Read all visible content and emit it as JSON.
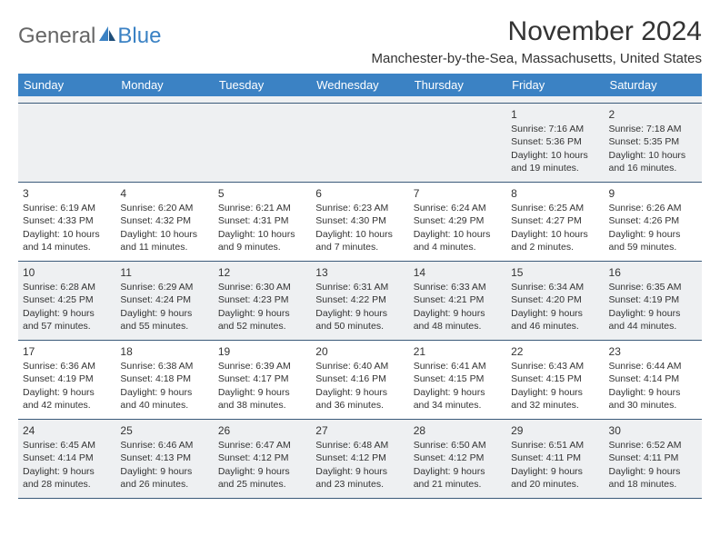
{
  "brand": {
    "part1": "General",
    "part2": "Blue"
  },
  "title": "November 2024",
  "location": "Manchester-by-the-Sea, Massachusetts, United States",
  "colors": {
    "header_bg": "#3b82c4",
    "header_text": "#ffffff",
    "border": "#3b5a7a",
    "shade": "#eef0f2",
    "text": "#333333",
    "logo_gray": "#666666",
    "logo_blue": "#3b82c4"
  },
  "day_names": [
    "Sunday",
    "Monday",
    "Tuesday",
    "Wednesday",
    "Thursday",
    "Friday",
    "Saturday"
  ],
  "weeks": [
    [
      {
        "empty": true
      },
      {
        "empty": true
      },
      {
        "empty": true
      },
      {
        "empty": true
      },
      {
        "empty": true
      },
      {
        "day": "1",
        "sunrise": "Sunrise: 7:16 AM",
        "sunset": "Sunset: 5:36 PM",
        "daylight": "Daylight: 10 hours and 19 minutes."
      },
      {
        "day": "2",
        "sunrise": "Sunrise: 7:18 AM",
        "sunset": "Sunset: 5:35 PM",
        "daylight": "Daylight: 10 hours and 16 minutes."
      }
    ],
    [
      {
        "day": "3",
        "sunrise": "Sunrise: 6:19 AM",
        "sunset": "Sunset: 4:33 PM",
        "daylight": "Daylight: 10 hours and 14 minutes."
      },
      {
        "day": "4",
        "sunrise": "Sunrise: 6:20 AM",
        "sunset": "Sunset: 4:32 PM",
        "daylight": "Daylight: 10 hours and 11 minutes."
      },
      {
        "day": "5",
        "sunrise": "Sunrise: 6:21 AM",
        "sunset": "Sunset: 4:31 PM",
        "daylight": "Daylight: 10 hours and 9 minutes."
      },
      {
        "day": "6",
        "sunrise": "Sunrise: 6:23 AM",
        "sunset": "Sunset: 4:30 PM",
        "daylight": "Daylight: 10 hours and 7 minutes."
      },
      {
        "day": "7",
        "sunrise": "Sunrise: 6:24 AM",
        "sunset": "Sunset: 4:29 PM",
        "daylight": "Daylight: 10 hours and 4 minutes."
      },
      {
        "day": "8",
        "sunrise": "Sunrise: 6:25 AM",
        "sunset": "Sunset: 4:27 PM",
        "daylight": "Daylight: 10 hours and 2 minutes."
      },
      {
        "day": "9",
        "sunrise": "Sunrise: 6:26 AM",
        "sunset": "Sunset: 4:26 PM",
        "daylight": "Daylight: 9 hours and 59 minutes."
      }
    ],
    [
      {
        "day": "10",
        "sunrise": "Sunrise: 6:28 AM",
        "sunset": "Sunset: 4:25 PM",
        "daylight": "Daylight: 9 hours and 57 minutes."
      },
      {
        "day": "11",
        "sunrise": "Sunrise: 6:29 AM",
        "sunset": "Sunset: 4:24 PM",
        "daylight": "Daylight: 9 hours and 55 minutes."
      },
      {
        "day": "12",
        "sunrise": "Sunrise: 6:30 AM",
        "sunset": "Sunset: 4:23 PM",
        "daylight": "Daylight: 9 hours and 52 minutes."
      },
      {
        "day": "13",
        "sunrise": "Sunrise: 6:31 AM",
        "sunset": "Sunset: 4:22 PM",
        "daylight": "Daylight: 9 hours and 50 minutes."
      },
      {
        "day": "14",
        "sunrise": "Sunrise: 6:33 AM",
        "sunset": "Sunset: 4:21 PM",
        "daylight": "Daylight: 9 hours and 48 minutes."
      },
      {
        "day": "15",
        "sunrise": "Sunrise: 6:34 AM",
        "sunset": "Sunset: 4:20 PM",
        "daylight": "Daylight: 9 hours and 46 minutes."
      },
      {
        "day": "16",
        "sunrise": "Sunrise: 6:35 AM",
        "sunset": "Sunset: 4:19 PM",
        "daylight": "Daylight: 9 hours and 44 minutes."
      }
    ],
    [
      {
        "day": "17",
        "sunrise": "Sunrise: 6:36 AM",
        "sunset": "Sunset: 4:19 PM",
        "daylight": "Daylight: 9 hours and 42 minutes."
      },
      {
        "day": "18",
        "sunrise": "Sunrise: 6:38 AM",
        "sunset": "Sunset: 4:18 PM",
        "daylight": "Daylight: 9 hours and 40 minutes."
      },
      {
        "day": "19",
        "sunrise": "Sunrise: 6:39 AM",
        "sunset": "Sunset: 4:17 PM",
        "daylight": "Daylight: 9 hours and 38 minutes."
      },
      {
        "day": "20",
        "sunrise": "Sunrise: 6:40 AM",
        "sunset": "Sunset: 4:16 PM",
        "daylight": "Daylight: 9 hours and 36 minutes."
      },
      {
        "day": "21",
        "sunrise": "Sunrise: 6:41 AM",
        "sunset": "Sunset: 4:15 PM",
        "daylight": "Daylight: 9 hours and 34 minutes."
      },
      {
        "day": "22",
        "sunrise": "Sunrise: 6:43 AM",
        "sunset": "Sunset: 4:15 PM",
        "daylight": "Daylight: 9 hours and 32 minutes."
      },
      {
        "day": "23",
        "sunrise": "Sunrise: 6:44 AM",
        "sunset": "Sunset: 4:14 PM",
        "daylight": "Daylight: 9 hours and 30 minutes."
      }
    ],
    [
      {
        "day": "24",
        "sunrise": "Sunrise: 6:45 AM",
        "sunset": "Sunset: 4:14 PM",
        "daylight": "Daylight: 9 hours and 28 minutes."
      },
      {
        "day": "25",
        "sunrise": "Sunrise: 6:46 AM",
        "sunset": "Sunset: 4:13 PM",
        "daylight": "Daylight: 9 hours and 26 minutes."
      },
      {
        "day": "26",
        "sunrise": "Sunrise: 6:47 AM",
        "sunset": "Sunset: 4:12 PM",
        "daylight": "Daylight: 9 hours and 25 minutes."
      },
      {
        "day": "27",
        "sunrise": "Sunrise: 6:48 AM",
        "sunset": "Sunset: 4:12 PM",
        "daylight": "Daylight: 9 hours and 23 minutes."
      },
      {
        "day": "28",
        "sunrise": "Sunrise: 6:50 AM",
        "sunset": "Sunset: 4:12 PM",
        "daylight": "Daylight: 9 hours and 21 minutes."
      },
      {
        "day": "29",
        "sunrise": "Sunrise: 6:51 AM",
        "sunset": "Sunset: 4:11 PM",
        "daylight": "Daylight: 9 hours and 20 minutes."
      },
      {
        "day": "30",
        "sunrise": "Sunrise: 6:52 AM",
        "sunset": "Sunset: 4:11 PM",
        "daylight": "Daylight: 9 hours and 18 minutes."
      }
    ]
  ]
}
